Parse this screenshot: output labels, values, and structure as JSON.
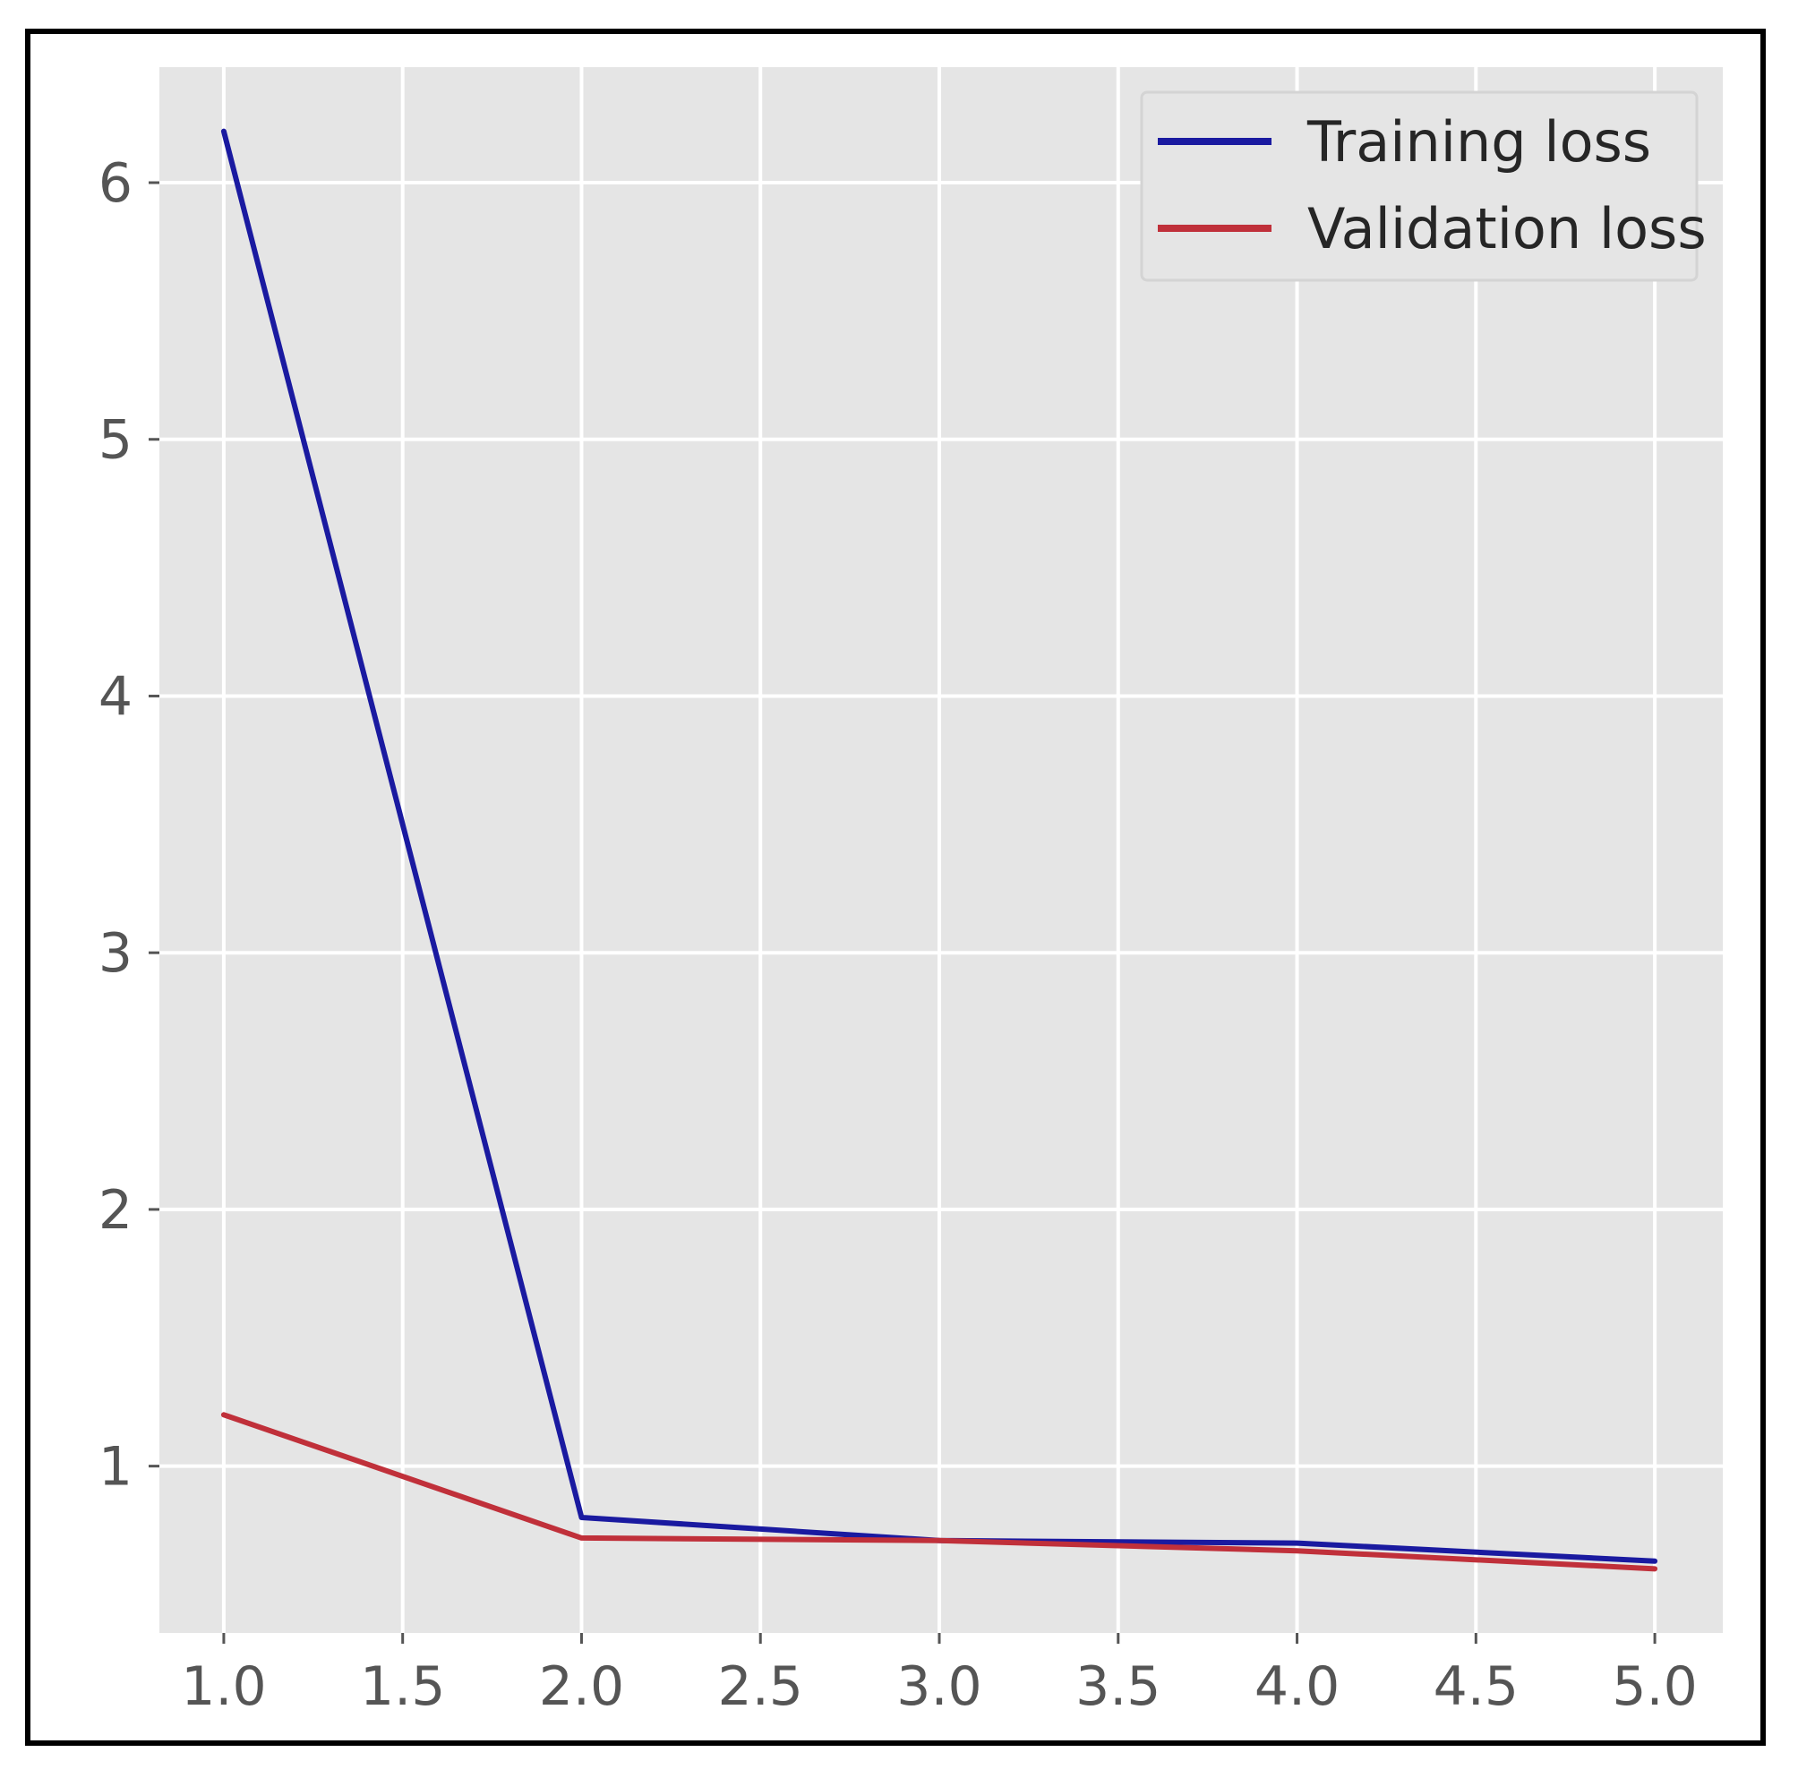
{
  "chart_data": {
    "type": "line",
    "title": "",
    "xlabel": "",
    "ylabel": "",
    "xlim": [
      0.82,
      5.19
    ],
    "ylim": [
      0.35,
      6.45
    ],
    "x_ticks": [
      1.0,
      1.5,
      2.0,
      2.5,
      3.0,
      3.5,
      4.0,
      4.5,
      5.0
    ],
    "x_tick_labels": [
      "1.0",
      "1.5",
      "2.0",
      "2.5",
      "3.0",
      "3.5",
      "4.0",
      "4.5",
      "5.0"
    ],
    "y_ticks": [
      1,
      2,
      3,
      4,
      5,
      6
    ],
    "y_tick_labels": [
      "1",
      "2",
      "3",
      "4",
      "5",
      "6"
    ],
    "grid": true,
    "legend_position": "top-right",
    "series": [
      {
        "name": "Training loss",
        "color": "#1a1aa0",
        "x": [
          1,
          2,
          3,
          4,
          5
        ],
        "y": [
          6.2,
          0.8,
          0.71,
          0.7,
          0.63
        ]
      },
      {
        "name": "Validation loss",
        "color": "#c0303a",
        "x": [
          1,
          2,
          3,
          4,
          5
        ],
        "y": [
          1.2,
          0.72,
          0.71,
          0.67,
          0.6
        ]
      }
    ]
  }
}
